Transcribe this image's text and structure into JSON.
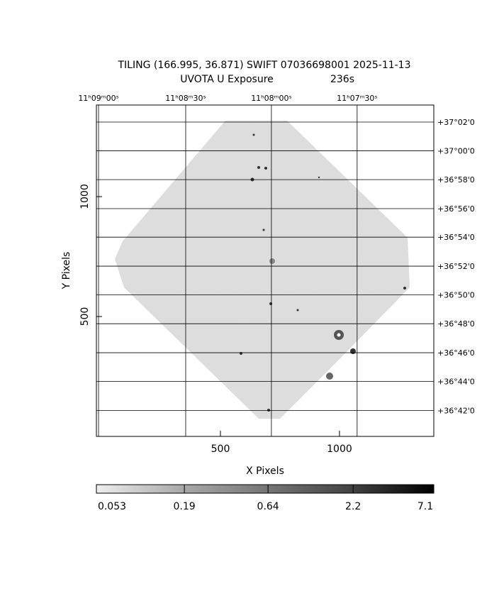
{
  "chart_data": {
    "type": "image",
    "title": "TILING (166.995, 36.871) SWIFT 07036698001 2025-11-13",
    "subtitle": "UVOTA U Exposure",
    "exposure": "236s",
    "xlabel": "X Pixels",
    "ylabel": "Y Pixels",
    "xlim": [
      -21,
      1396
    ],
    "ylim": [
      0,
      1382
    ],
    "xticks": [
      500,
      1000
    ],
    "yticks": [
      500,
      1000
    ],
    "ra_ticks": [
      {
        "value": -12,
        "label": "11ʰ09ᵐ00ˢ"
      },
      {
        "value": 354,
        "label": "11ʰ08ᵐ30ˢ"
      },
      {
        "value": 714,
        "label": "11ʰ08ᵐ00ˢ"
      },
      {
        "value": 1074,
        "label": "11ʰ07ᵐ30ˢ"
      }
    ],
    "dec_ticks": [
      {
        "value": 1311,
        "label": "+37°02'0"
      },
      {
        "value": 1191,
        "label": "+37°00'0"
      },
      {
        "value": 1071,
        "label": "+36°58'0"
      },
      {
        "value": 950,
        "label": "+36°56'0"
      },
      {
        "value": 831,
        "label": "+36°54'0"
      },
      {
        "value": 710,
        "label": "+36°52'0"
      },
      {
        "value": 590,
        "label": "+36°50'0"
      },
      {
        "value": 470,
        "label": "+36°48'0"
      },
      {
        "value": 349,
        "label": "+36°46'0"
      },
      {
        "value": 229,
        "label": "+36°44'0"
      },
      {
        "value": 108,
        "label": "+36°42'0"
      }
    ],
    "colorbar": {
      "log": true,
      "lim": [
        0.053,
        7.1
      ],
      "ticks": [
        0.053,
        0.19,
        0.64,
        2.2,
        7.1
      ]
    }
  }
}
